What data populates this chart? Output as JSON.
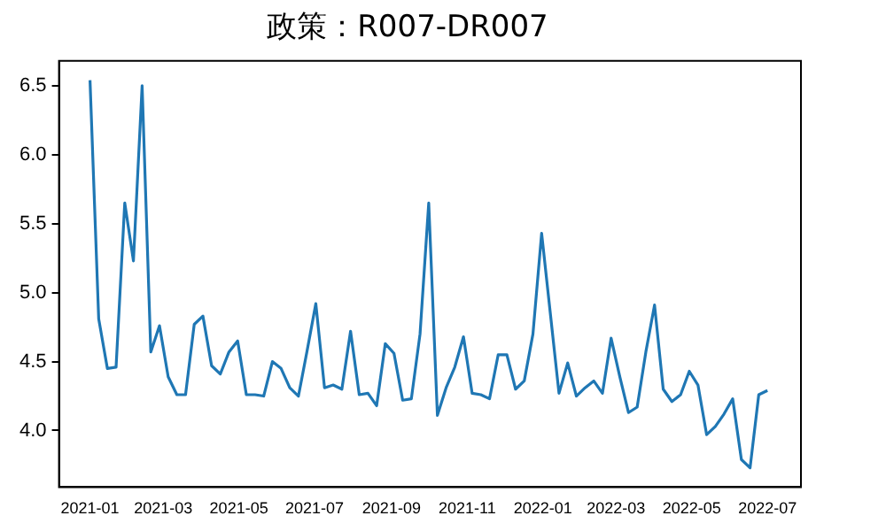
{
  "chart_data": {
    "type": "line",
    "title": "政策：R007-DR007",
    "x": [
      "2021-01-01",
      "2021-01-08",
      "2021-01-15",
      "2021-01-22",
      "2021-01-29",
      "2021-02-05",
      "2021-02-12",
      "2021-02-19",
      "2021-02-26",
      "2021-03-05",
      "2021-03-12",
      "2021-03-19",
      "2021-03-26",
      "2021-04-02",
      "2021-04-09",
      "2021-04-16",
      "2021-04-23",
      "2021-04-30",
      "2021-05-07",
      "2021-05-14",
      "2021-05-21",
      "2021-05-28",
      "2021-06-04",
      "2021-06-11",
      "2021-06-18",
      "2021-06-25",
      "2021-07-02",
      "2021-07-09",
      "2021-07-16",
      "2021-07-23",
      "2021-07-30",
      "2021-08-06",
      "2021-08-13",
      "2021-08-20",
      "2021-08-27",
      "2021-09-03",
      "2021-09-10",
      "2021-09-17",
      "2021-09-24",
      "2021-10-01",
      "2021-10-08",
      "2021-10-15",
      "2021-10-22",
      "2021-10-29",
      "2021-11-05",
      "2021-11-12",
      "2021-11-19",
      "2021-11-26",
      "2021-12-03",
      "2021-12-10",
      "2021-12-17",
      "2021-12-24",
      "2021-12-31",
      "2022-01-07",
      "2022-01-14",
      "2022-01-21",
      "2022-01-28",
      "2022-02-04",
      "2022-02-11",
      "2022-02-18",
      "2022-02-25",
      "2022-03-04",
      "2022-03-11",
      "2022-03-18",
      "2022-03-25",
      "2022-04-01",
      "2022-04-08",
      "2022-04-15",
      "2022-04-22",
      "2022-04-29",
      "2022-05-06",
      "2022-05-13",
      "2022-05-20",
      "2022-05-27",
      "2022-06-03",
      "2022-06-10",
      "2022-06-17",
      "2022-06-24",
      "2022-07-01"
    ],
    "series": [
      {
        "color": "#1f77b4",
        "values": [
          6.54,
          4.81,
          4.45,
          4.46,
          5.65,
          5.23,
          6.5,
          4.57,
          4.76,
          4.39,
          4.26,
          4.26,
          4.77,
          4.83,
          4.47,
          4.41,
          4.57,
          4.65,
          4.26,
          4.26,
          4.25,
          4.5,
          4.45,
          4.31,
          4.25,
          4.58,
          4.92,
          4.31,
          4.33,
          4.3,
          4.72,
          4.26,
          4.27,
          4.18,
          4.63,
          4.56,
          4.22,
          4.23,
          4.7,
          5.65,
          4.11,
          4.31,
          4.46,
          4.68,
          4.27,
          4.26,
          4.23,
          4.55,
          4.55,
          4.3,
          4.36,
          4.7,
          5.43,
          4.85,
          4.27,
          4.49,
          4.25,
          4.31,
          4.36,
          4.27,
          4.67,
          4.39,
          4.13,
          4.17,
          4.57,
          4.91,
          4.3,
          4.21,
          4.26,
          4.43,
          4.33,
          3.97,
          4.03,
          4.12,
          4.23,
          3.79,
          3.73,
          4.26,
          4.29
        ]
      }
    ],
    "xlim": [
      "2020-12-07",
      "2022-07-28"
    ],
    "xticks": [
      "2021-01",
      "2021-03",
      "2021-05",
      "2021-07",
      "2021-09",
      "2021-11",
      "2022-01",
      "2022-03",
      "2022-05",
      "2022-07"
    ],
    "ylim": [
      3.59,
      6.68
    ],
    "yticks": [
      {
        "value": 4,
        "label": "4.0"
      },
      {
        "value": 4.5,
        "label": "4.5"
      },
      {
        "value": 5,
        "label": "5.0"
      },
      {
        "value": 5.5,
        "label": "5.5"
      },
      {
        "value": 6,
        "label": "6.0"
      },
      {
        "value": 6.5,
        "label": "6.5"
      }
    ],
    "grid": false,
    "legend": false,
    "marker": "none",
    "line_style": "solid"
  }
}
